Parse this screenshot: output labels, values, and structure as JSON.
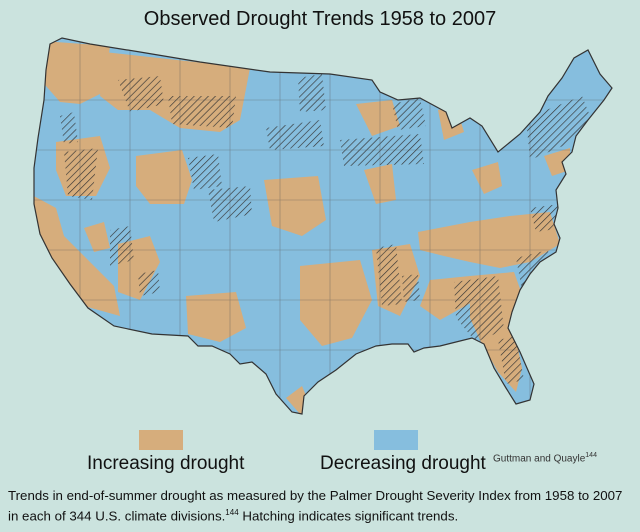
{
  "title": "Observed Drought Trends 1958 to 2007",
  "colors": {
    "background": "#cbe3de",
    "increasing": "#d6ad7c",
    "decreasing": "#86bede",
    "border": "#333333"
  },
  "legend": {
    "increasing_label": "Increasing drought",
    "decreasing_label": "Decreasing drought"
  },
  "credit": {
    "text": "Guttman and Quayle",
    "ref": "144"
  },
  "caption": {
    "part1": "Trends in end-of-summer drought as measured by the Palmer Drought Severity Index from 1958 to 2007 in each of 344 U.S. climate divisions.",
    "ref": "144",
    "part2": " Hatching indicates significant trends."
  }
}
